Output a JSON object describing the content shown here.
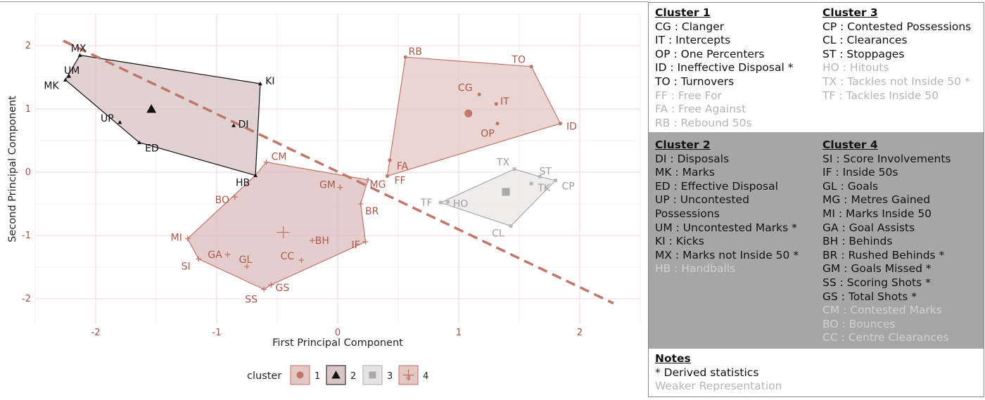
{
  "chart_data": {
    "type": "scatter",
    "xlabel": "First Principal Component",
    "ylabel": "Second Principal Component",
    "xlim": [
      -2.5,
      2.5
    ],
    "ylim": [
      -2.4,
      2.5
    ],
    "xticks": [
      "-2",
      "-1",
      "0",
      "1",
      "2"
    ],
    "xtick_values": [
      -2,
      -1,
      0,
      1,
      2
    ],
    "yticks": [
      "-2",
      "-1",
      "0",
      "1",
      "2"
    ],
    "ytick_values": [
      -2,
      -1,
      0,
      1,
      2
    ],
    "grid": true,
    "divider_line": {
      "x": [
        -2.5,
        2.5
      ],
      "y": [
        2.5,
        -2.45
      ],
      "style": "dashed",
      "color": "#c0766a"
    },
    "legend_title": "cluster",
    "legend": [
      {
        "label": "1",
        "shape": "circle",
        "color": "#c0766a"
      },
      {
        "label": "2",
        "shape": "triangle",
        "color": "#111111"
      },
      {
        "label": "3",
        "shape": "square",
        "color": "#b5b5b5"
      },
      {
        "label": "4",
        "shape": "plus",
        "color": "#c0766a"
      }
    ],
    "clusters": [
      {
        "name": "1",
        "shape": "circle",
        "color": "#c0766a",
        "fill": "#e3c7c3",
        "hull": [
          "RB",
          "TO",
          "ID",
          "FF",
          "FA"
        ],
        "centroid": {
          "x": 1.08,
          "y": 0.93
        },
        "points": [
          {
            "label": "RB",
            "x": 0.56,
            "y": 1.82,
            "weak": true
          },
          {
            "label": "TO",
            "x": 1.6,
            "y": 1.67,
            "weak": false
          },
          {
            "label": "CG",
            "x": 1.17,
            "y": 1.23,
            "weak": false
          },
          {
            "label": "IT",
            "x": 1.31,
            "y": 1.08,
            "weak": false
          },
          {
            "label": "ID",
            "x": 1.84,
            "y": 0.77,
            "weak": false
          },
          {
            "label": "OP",
            "x": 1.32,
            "y": 0.77,
            "weak": false
          },
          {
            "label": "FA",
            "x": 0.43,
            "y": 0.19,
            "weak": true
          },
          {
            "label": "FF",
            "x": 0.41,
            "y": -0.06,
            "weak": true
          }
        ]
      },
      {
        "name": "2",
        "shape": "triangle",
        "color": "#111111",
        "fill": "#d8c2c2",
        "hull": [
          "MX",
          "KI",
          "HB",
          "ED",
          "MK"
        ],
        "centroid": {
          "x": -1.54,
          "y": 1.0
        },
        "points": [
          {
            "label": "MX",
            "x": -2.13,
            "y": 1.85,
            "weak": false
          },
          {
            "label": "UM",
            "x": -2.22,
            "y": 1.52,
            "weak": false
          },
          {
            "label": "MK",
            "x": -2.25,
            "y": 1.46,
            "weak": false
          },
          {
            "label": "KI",
            "x": -0.64,
            "y": 1.4,
            "weak": false
          },
          {
            "label": "DI",
            "x": -0.86,
            "y": 0.74,
            "weak": false
          },
          {
            "label": "UP",
            "x": -1.8,
            "y": 0.79,
            "weak": false
          },
          {
            "label": "ED",
            "x": -1.64,
            "y": 0.47,
            "weak": false
          },
          {
            "label": "HB",
            "x": -0.68,
            "y": -0.05,
            "weak": true
          }
        ]
      },
      {
        "name": "3",
        "shape": "square",
        "color": "#b5b5b5",
        "fill": "#e9e6e6",
        "hull": [
          "TX",
          "ST",
          "CP",
          "CL",
          "TF"
        ],
        "centroid": {
          "x": 1.39,
          "y": -0.31
        },
        "points": [
          {
            "label": "TX",
            "x": 1.46,
            "y": 0.05,
            "weak": true
          },
          {
            "label": "ST",
            "x": 1.67,
            "y": -0.07,
            "weak": false
          },
          {
            "label": "CP",
            "x": 1.8,
            "y": -0.13,
            "weak": false
          },
          {
            "label": "TK",
            "x": 1.6,
            "y": -0.18,
            "weak": false
          },
          {
            "label": "HO",
            "x": 0.91,
            "y": -0.47,
            "weak": true
          },
          {
            "label": "TF",
            "x": 0.85,
            "y": -0.48,
            "weak": true
          },
          {
            "label": "CL",
            "x": 1.43,
            "y": -0.85,
            "weak": false
          }
        ]
      },
      {
        "name": "4",
        "shape": "plus",
        "color": "#c0766a",
        "fill": "#dcbcbe",
        "hull": [
          "CM",
          "MG",
          "BR",
          "IF",
          "GS",
          "SS",
          "SI",
          "MI",
          "HB4"
        ],
        "centroid": {
          "x": -0.45,
          "y": -0.95
        },
        "points": [
          {
            "label": "CM",
            "x": -0.59,
            "y": 0.16,
            "weak": true
          },
          {
            "label": "GM",
            "x": 0.02,
            "y": -0.24,
            "weak": false
          },
          {
            "label": "MG",
            "x": 0.25,
            "y": -0.12,
            "weak": false
          },
          {
            "label": "BR",
            "x": 0.19,
            "y": -0.5,
            "weak": false
          },
          {
            "label": "BO",
            "x": -0.85,
            "y": -0.39,
            "weak": true
          },
          {
            "label": "BH",
            "x": -0.21,
            "y": -1.08,
            "weak": false
          },
          {
            "label": "IF",
            "x": 0.23,
            "y": -1.1,
            "weak": false
          },
          {
            "label": "MI",
            "x": -1.24,
            "y": -1.05,
            "weak": false
          },
          {
            "label": "GA",
            "x": -0.91,
            "y": -1.3,
            "weak": false
          },
          {
            "label": "CC",
            "x": -0.3,
            "y": -1.39,
            "weak": true
          },
          {
            "label": "SI",
            "x": -1.15,
            "y": -1.37,
            "weak": false
          },
          {
            "label": "GL",
            "x": -0.75,
            "y": -1.49,
            "weak": false
          },
          {
            "label": "GS",
            "x": -0.55,
            "y": -1.78,
            "weak": false
          },
          {
            "label": "SS",
            "x": -0.61,
            "y": -1.85,
            "weak": false
          },
          {
            "label": "HB4",
            "x": -0.68,
            "y": -0.05,
            "weak": true,
            "hidden": true
          }
        ]
      }
    ]
  },
  "key": {
    "cluster1": {
      "title": "Cluster 1",
      "items": [
        {
          "text": "CG : Clanger",
          "weak": false
        },
        {
          "text": "IT : Intercepts",
          "weak": false
        },
        {
          "text": "OP : One Percenters",
          "weak": false
        },
        {
          "text": "ID : Ineffective Disposal *",
          "weak": false
        },
        {
          "text": "TO : Turnovers",
          "weak": false
        },
        {
          "text": "FF : Free For",
          "weak": true
        },
        {
          "text": "FA : Free Against",
          "weak": true
        },
        {
          "text": "RB : Rebound 50s",
          "weak": true
        }
      ]
    },
    "cluster3": {
      "title": "Cluster 3",
      "items": [
        {
          "text": "CP : Contested Possessions",
          "weak": false
        },
        {
          "text": "CL : Clearances",
          "weak": false
        },
        {
          "text": "ST : Stoppages",
          "weak": false
        },
        {
          "text": "HO : Hitouts",
          "weak": true
        },
        {
          "text": "TX : Tackles not Inside 50 *",
          "weak": true
        },
        {
          "text": "TF : Tackles Inside 50",
          "weak": true
        }
      ]
    },
    "cluster2": {
      "title": "Cluster 2",
      "items": [
        {
          "text": "DI : Disposals",
          "weak": false
        },
        {
          "text": "MK : Marks",
          "weak": false
        },
        {
          "text": "ED : Effective Disposal",
          "weak": false
        },
        {
          "text": "UP : Uncontested",
          "weak": false
        },
        {
          "text": "Possessions",
          "weak": false
        },
        {
          "text": "UM : Uncontested Marks *",
          "weak": false
        },
        {
          "text": "KI : Kicks",
          "weak": false
        },
        {
          "text": "MX : Marks not Inside 50 *",
          "weak": false
        },
        {
          "text": "HB : Handballs",
          "weak": true
        }
      ]
    },
    "cluster4": {
      "title": "Cluster 4",
      "items": [
        {
          "text": "SI : Score Involvements",
          "weak": false
        },
        {
          "text": "IF : Inside 50s",
          "weak": false
        },
        {
          "text": "GL : Goals",
          "weak": false
        },
        {
          "text": "MG : Metres Gained",
          "weak": false
        },
        {
          "text": "MI : Marks Inside 50",
          "weak": false
        },
        {
          "text": "GA : Goal Assists",
          "weak": false
        },
        {
          "text": "BH : Behinds",
          "weak": false
        },
        {
          "text": "BR : Rushed Behinds *",
          "weak": false
        },
        {
          "text": "GM : Goals Missed *",
          "weak": false
        },
        {
          "text": "SS : Scoring Shots *",
          "weak": false
        },
        {
          "text": "GS : Total Shots *",
          "weak": false
        },
        {
          "text": "CM : Contested Marks",
          "weak": true
        },
        {
          "text": "BO : Bounces",
          "weak": true
        },
        {
          "text": "CC : Centre Clearances",
          "weak": true
        }
      ]
    },
    "notes": {
      "title": "Notes",
      "items": [
        {
          "text": "* Derived statistics",
          "weak": false
        },
        {
          "text": "Weaker Representation",
          "weak": true
        }
      ]
    }
  }
}
